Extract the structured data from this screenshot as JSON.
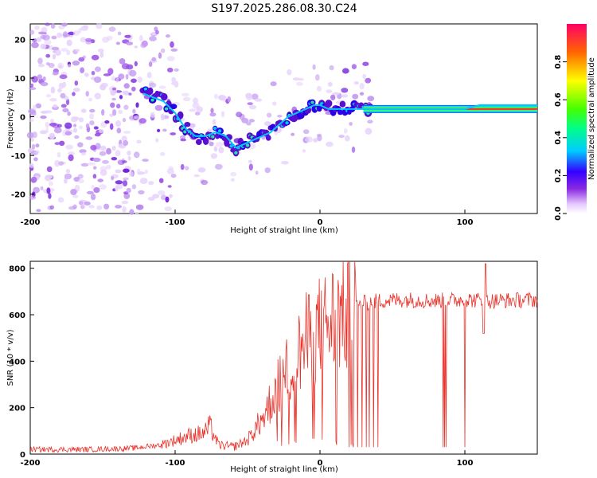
{
  "title": "S197.2025.286.08.30.C24",
  "chart_data": [
    {
      "type": "heatmap",
      "name": "spectrogram",
      "xlabel": "Height of straight line (km)",
      "ylabel": "Frequency (Hz)",
      "xlim": [
        -200,
        150
      ],
      "ylim": [
        -25,
        24
      ],
      "xticks": [
        -200,
        -100,
        0,
        100
      ],
      "yticks": [
        -20,
        -10,
        0,
        10,
        20
      ],
      "ridge": {
        "x": [
          -122,
          -115,
          -108,
          -100,
          -93,
          -86,
          -79,
          -72,
          -65,
          -58,
          -52,
          -46,
          -40,
          -34,
          -28,
          -22,
          -16,
          -10,
          -4,
          0,
          6,
          12,
          18,
          24,
          30,
          40,
          60,
          80,
          100,
          110,
          150
        ],
        "y": [
          6,
          5,
          4,
          1,
          -3,
          -5,
          -5,
          -4,
          -5,
          -8,
          -7,
          -6,
          -5,
          -4,
          -2,
          0,
          1,
          2,
          3,
          3,
          2,
          2,
          2,
          2,
          2,
          2,
          2,
          2,
          2,
          3,
          3
        ]
      },
      "colorbar": {
        "label": "Normalized spectral amplitude",
        "ticks": [
          "0.0",
          "0.2",
          "0.4",
          "0.6",
          "0.8"
        ]
      }
    },
    {
      "type": "line",
      "name": "snr",
      "xlabel": "Height of straight line (km)",
      "ylabel": "SNR (10 * v/v)",
      "xlim": [
        -200,
        150
      ],
      "ylim": [
        0,
        830
      ],
      "xticks": [
        -200,
        -100,
        0,
        100
      ],
      "yticks": [
        0,
        200,
        400,
        600,
        800
      ],
      "color": "#e8322a",
      "trend": {
        "x": [
          -200,
          -160,
          -130,
          -110,
          -100,
          -90,
          -80,
          -76,
          -70,
          -60,
          -50,
          -40,
          -30,
          -20,
          -10,
          0,
          10,
          20,
          30,
          40,
          60,
          80,
          100,
          120,
          150
        ],
        "y": [
          20,
          20,
          25,
          40,
          60,
          80,
          90,
          120,
          40,
          30,
          60,
          150,
          280,
          380,
          480,
          540,
          580,
          620,
          650,
          660,
          665,
          660,
          665,
          660,
          665
        ]
      },
      "dips": [
        20,
        23,
        26,
        29,
        32,
        34,
        37,
        40,
        85,
        86,
        87,
        100
      ]
    }
  ]
}
